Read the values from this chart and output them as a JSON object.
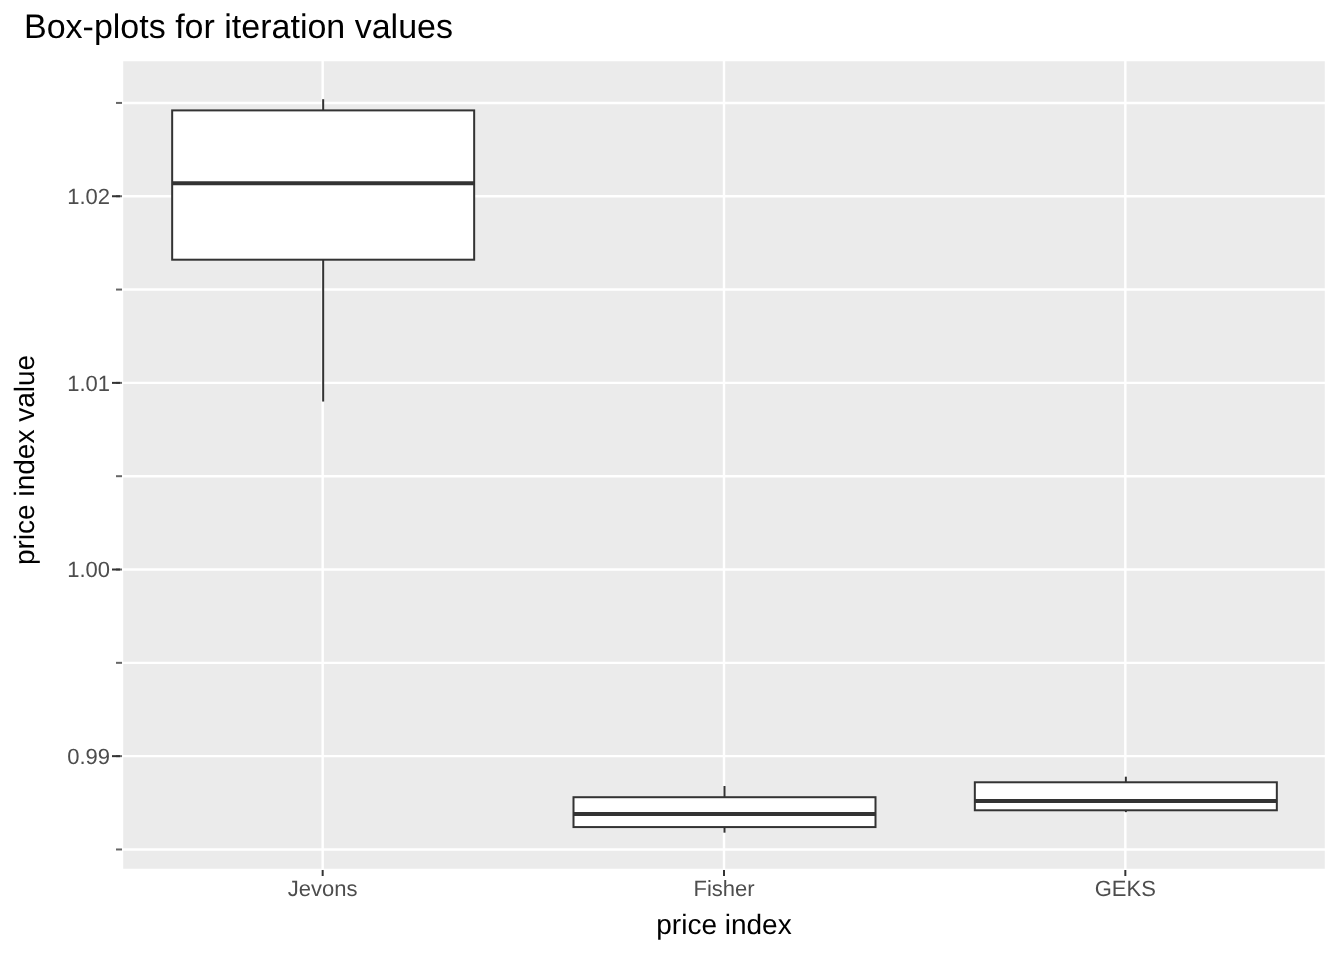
{
  "chart_data": {
    "type": "box",
    "title": "Box-plots for iteration values",
    "xlabel": "price index",
    "ylabel": "price index value",
    "categories": [
      "Jevons",
      "Fisher",
      "GEKS"
    ],
    "boxes": [
      {
        "low": 1.009,
        "q1": 1.0166,
        "median": 1.0207,
        "q3": 1.0246,
        "high": 1.0252
      },
      {
        "low": 0.9859,
        "q1": 0.9862,
        "median": 0.9869,
        "q3": 0.9878,
        "high": 0.9884
      },
      {
        "low": 0.987,
        "q1": 0.9871,
        "median": 0.9876,
        "q3": 0.9886,
        "high": 0.9889
      }
    ],
    "ylim": [
      0.9839,
      1.0273
    ],
    "yticks": [
      {
        "value": 0.985,
        "label": null
      },
      0.99,
      {
        "value": 0.995,
        "label": null
      },
      {
        "value": 1,
        "label": "1.00"
      },
      {
        "value": 1.005,
        "label": null
      },
      1.01,
      {
        "value": 1.015,
        "label": null
      },
      1.02,
      {
        "value": 1.025,
        "label": null
      }
    ],
    "grid": true
  }
}
